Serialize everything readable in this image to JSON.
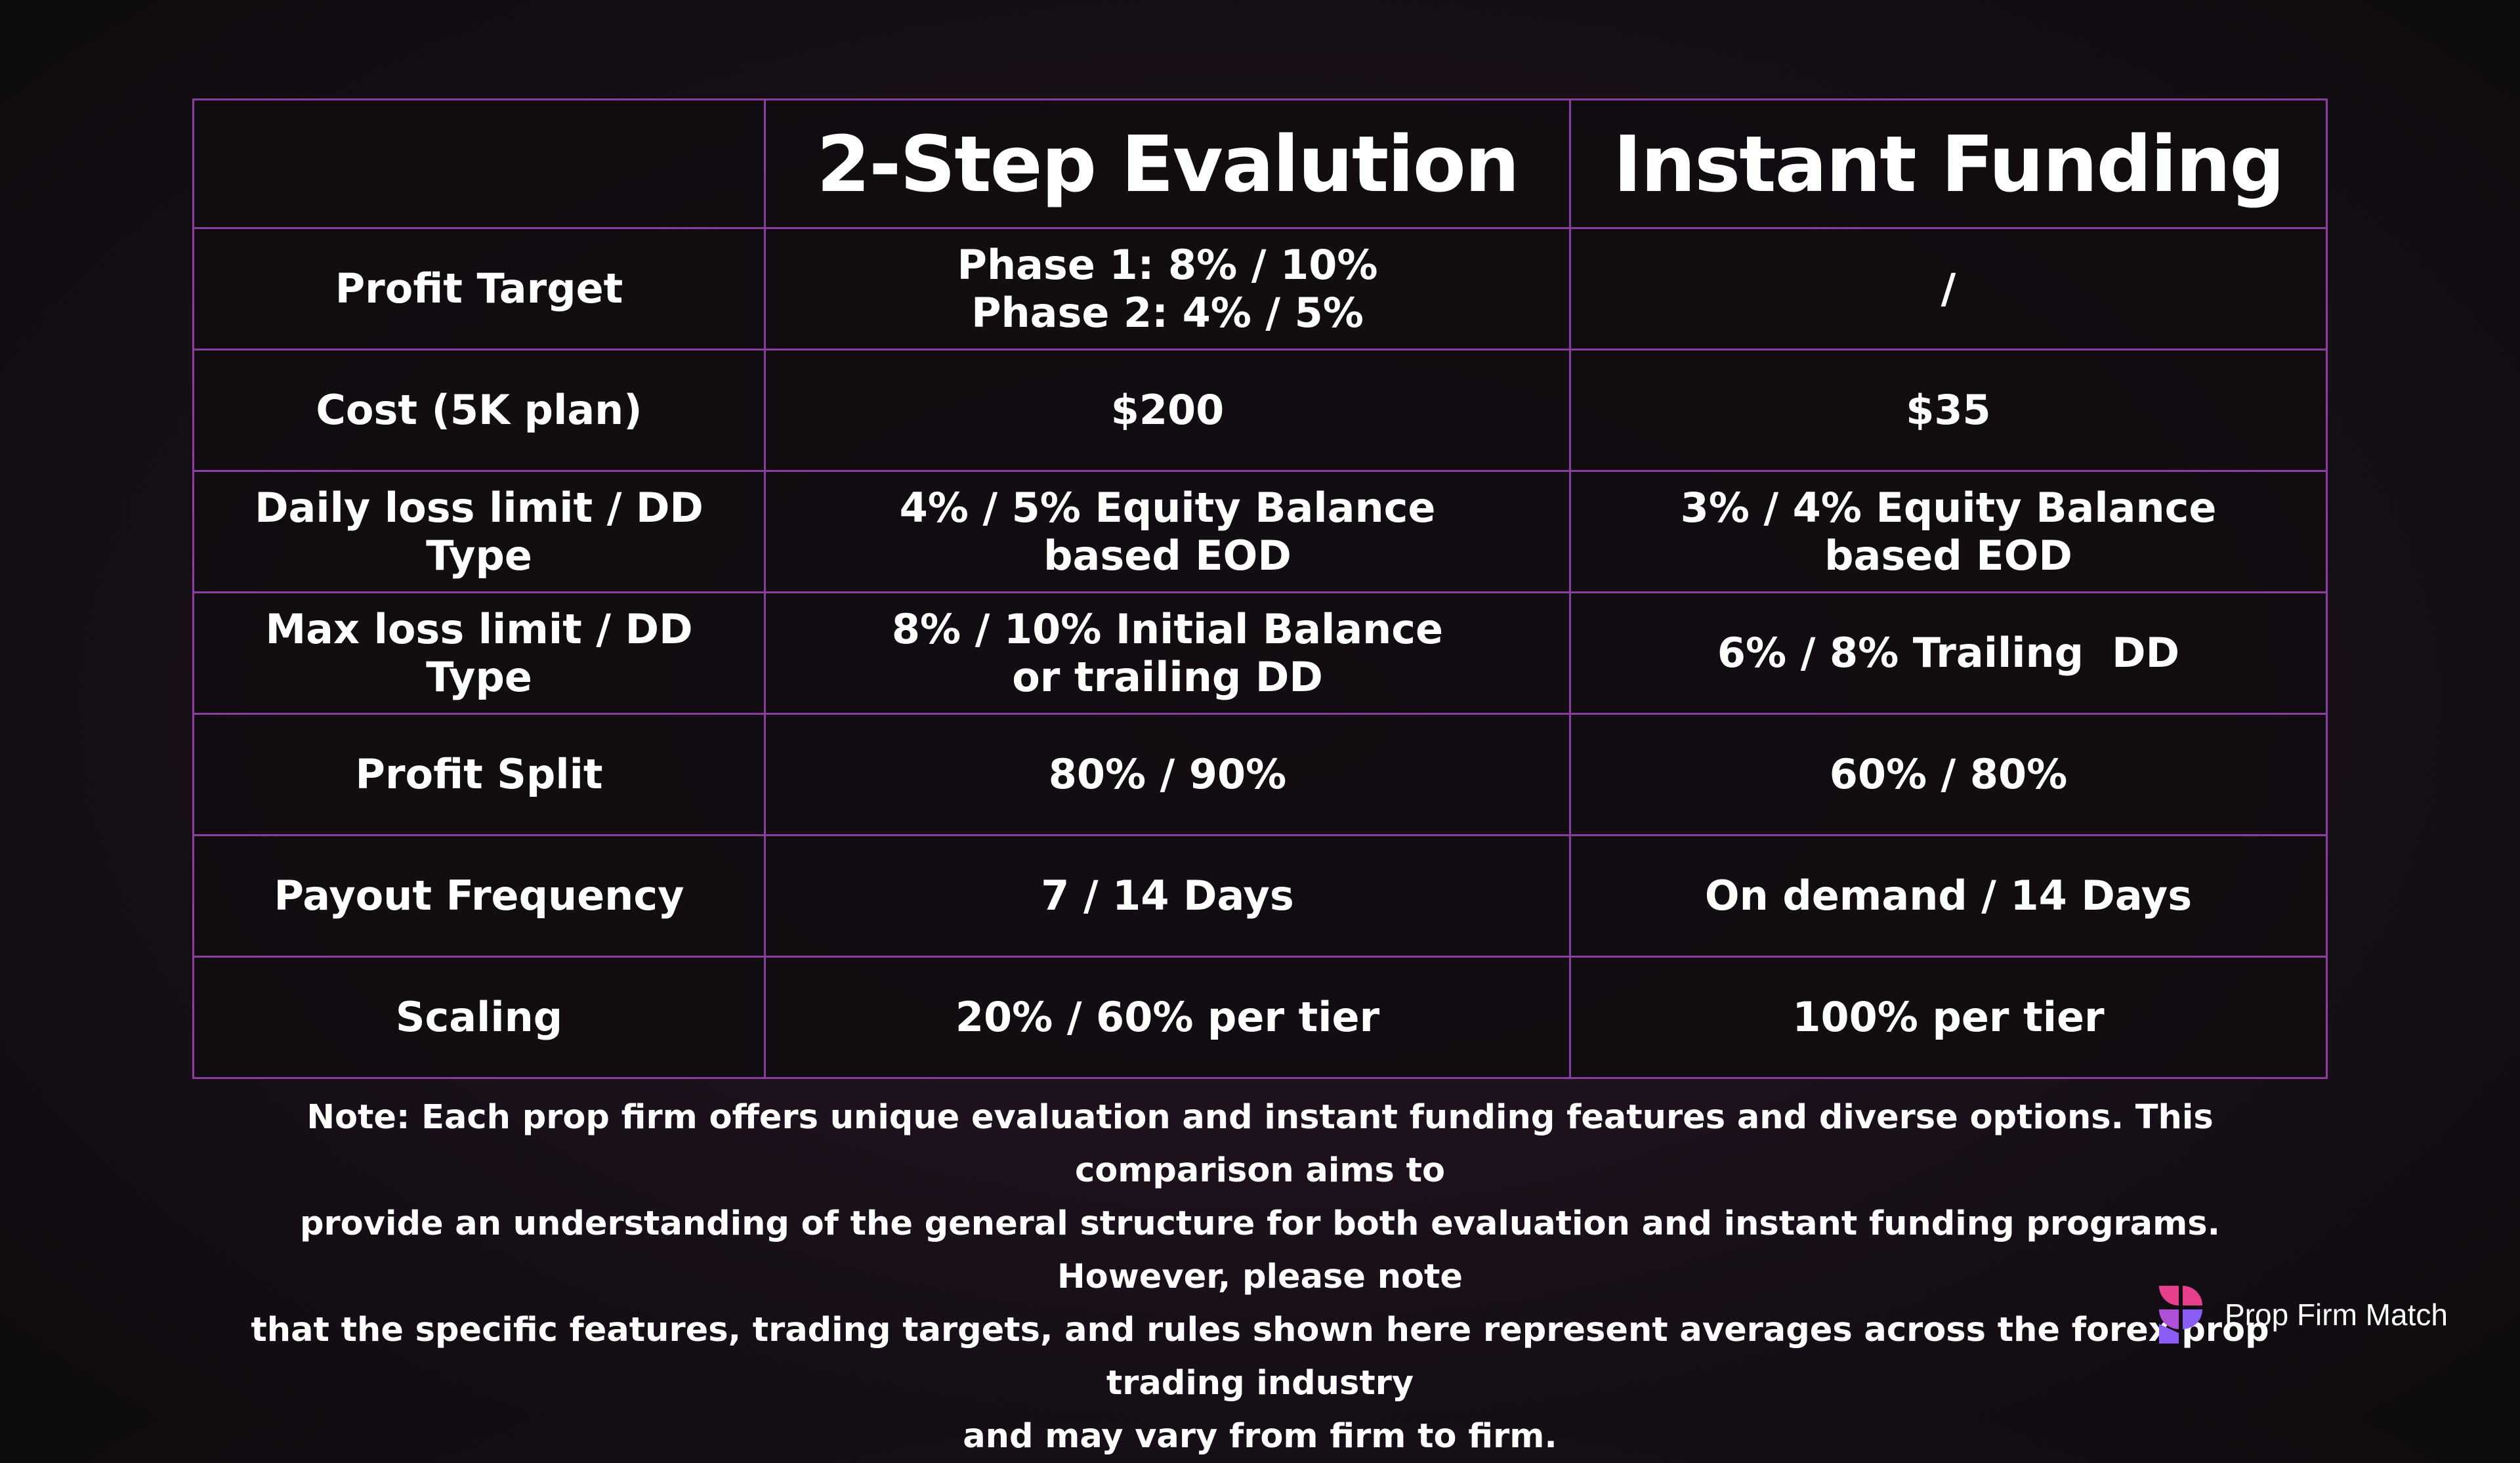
{
  "table": {
    "headers": [
      "",
      "2-Step Evalution",
      "Instant Funding"
    ],
    "rows": [
      {
        "label": "Profit Target",
        "evaluation": [
          "Phase 1: 8% / 10%",
          "Phase 2: 4% / 5%"
        ],
        "instant": [
          "/"
        ]
      },
      {
        "label": "Cost (5K plan)",
        "evaluation": [
          "$200"
        ],
        "instant": [
          "$35"
        ]
      },
      {
        "label": "Daily loss limit / DD Type",
        "evaluation": [
          "4% / 5% Equity Balance",
          "based EOD"
        ],
        "instant": [
          "3% / 4% Equity Balance",
          "based EOD"
        ]
      },
      {
        "label": "Max loss limit / DD Type",
        "evaluation": [
          "8% / 10% Initial Balance",
          "or trailing DD"
        ],
        "instant": [
          "6% / 8% Trailing  DD"
        ]
      },
      {
        "label": "Profit Split",
        "evaluation": [
          "80% / 90%"
        ],
        "instant": [
          "60% / 80%"
        ]
      },
      {
        "label": "Payout Frequency",
        "evaluation": [
          "7 / 14 Days"
        ],
        "instant": [
          "On demand / 14 Days"
        ]
      },
      {
        "label": "Scaling",
        "evaluation": [
          "20% / 60% per tier"
        ],
        "instant": [
          "100% per tier"
        ]
      }
    ]
  },
  "note": {
    "lines": [
      "Note: Each prop firm offers unique evaluation and instant funding features and diverse options. This comparison aims to",
      "provide an understanding of the general structure for both evaluation and instant funding programs. However, please note",
      "that the specific features, trading targets, and rules shown here represent averages across the forex prop trading industry",
      "and may vary from firm to firm."
    ]
  },
  "brand": {
    "name": "Prop Firm Match",
    "logo_icon": "prop-firm-match-logo-icon",
    "colors": {
      "pink": "#e6408c",
      "violet": "#8b5cf6",
      "purple": "#b04fd8",
      "border": "#8a3fa0"
    }
  }
}
